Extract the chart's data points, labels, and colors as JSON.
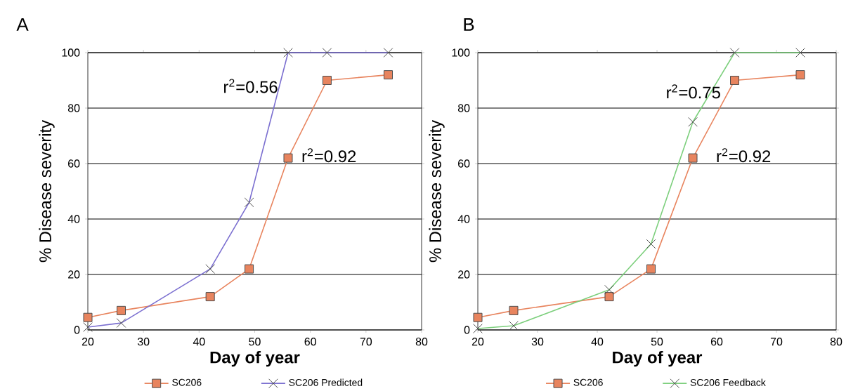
{
  "chart_data": [
    {
      "type": "line",
      "title": "A",
      "xlabel": "Day of year",
      "ylabel": "% Disease severity",
      "x": [
        20,
        26,
        42,
        49,
        56,
        63,
        74
      ],
      "series": [
        {
          "name": "SC206",
          "color": "#e8845e",
          "values": [
            4.5,
            7,
            12,
            22,
            62,
            90,
            92
          ],
          "marker": "square"
        },
        {
          "name": "SC206 Predicted",
          "color": "#7b6fd0",
          "values": [
            1,
            2.5,
            22,
            46,
            100,
            100,
            100
          ],
          "marker": "cross"
        }
      ],
      "xlim": [
        20,
        80
      ],
      "ylim": [
        0,
        100
      ],
      "xticks": [
        20,
        30,
        40,
        50,
        60,
        70,
        80
      ],
      "yticks": [
        0,
        20,
        40,
        60,
        80,
        100
      ],
      "grid": "y",
      "legend": "bottom",
      "annotations": [
        "r$^{2}$=0.56",
        "r$^{2}$=0.92"
      ]
    },
    {
      "type": "line",
      "title": "B",
      "xlabel": "Day of year",
      "ylabel": "% Disease severity",
      "x": [
        20,
        26,
        42,
        49,
        56,
        63,
        74
      ],
      "series": [
        {
          "name": "SC206",
          "color": "#e8845e",
          "values": [
            4.5,
            7,
            12,
            22,
            62,
            90,
            92
          ],
          "marker": "square"
        },
        {
          "name": "SC206 Feedback",
          "color": "#7ccf7c",
          "values": [
            0.5,
            1.5,
            14.5,
            31,
            75,
            100,
            100
          ],
          "marker": "cross"
        }
      ],
      "xlim": [
        20,
        80
      ],
      "ylim": [
        0,
        100
      ],
      "xticks": [
        20,
        30,
        40,
        50,
        60,
        70,
        80
      ],
      "yticks": [
        0,
        20,
        40,
        60,
        80,
        100
      ],
      "grid": "y",
      "legend": "bottom",
      "annotations": [
        "r$^{2}$=0.75",
        "r$^{2}$=0.92"
      ]
    }
  ]
}
